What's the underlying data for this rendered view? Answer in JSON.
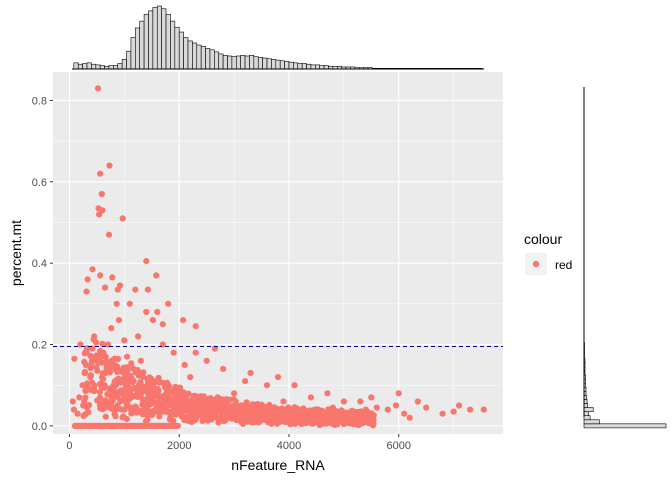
{
  "chart_data": {
    "type": "scatter",
    "title": "",
    "xlabel": "nFeature_RNA",
    "ylabel": "percent.mt",
    "xlim": [
      -300,
      7900
    ],
    "ylim": [
      -0.02,
      0.87
    ],
    "x_ticks": [
      0,
      2000,
      4000,
      6000
    ],
    "y_ticks": [
      0.0,
      0.2,
      0.4,
      0.6,
      0.8
    ],
    "x_tick_labels": [
      "0",
      "2000",
      "4000",
      "6000"
    ],
    "y_tick_labels": [
      "0.0",
      "0.2",
      "0.4",
      "0.6",
      "0.8"
    ],
    "grid": true,
    "point_color": "#F8766D",
    "panel_background": "#EBEBEB",
    "hline": {
      "y": 0.195,
      "color": "#00008B",
      "linetype": "dashed"
    },
    "legend": {
      "title": "colour",
      "position": "right",
      "entries": [
        {
          "label": "red",
          "color": "#F8766D"
        }
      ]
    },
    "series": [
      {
        "name": "red",
        "points": [
          [
            520,
            0.83
          ],
          [
            730,
            0.64
          ],
          [
            560,
            0.62
          ],
          [
            590,
            0.57
          ],
          [
            600,
            0.53
          ],
          [
            540,
            0.52
          ],
          [
            530,
            0.535
          ],
          [
            970,
            0.51
          ],
          [
            720,
            0.47
          ],
          [
            1400,
            0.405
          ],
          [
            420,
            0.385
          ],
          [
            330,
            0.36
          ],
          [
            1580,
            0.37
          ],
          [
            560,
            0.37
          ],
          [
            780,
            0.365
          ],
          [
            920,
            0.345
          ],
          [
            650,
            0.34
          ],
          [
            880,
            0.335
          ],
          [
            310,
            0.33
          ],
          [
            1200,
            0.335
          ],
          [
            1430,
            0.335
          ],
          [
            1800,
            0.3
          ],
          [
            1100,
            0.3
          ],
          [
            860,
            0.3
          ],
          [
            1400,
            0.28
          ],
          [
            1600,
            0.28
          ],
          [
            2070,
            0.26
          ],
          [
            1700,
            0.25
          ],
          [
            1520,
            0.26
          ],
          [
            2300,
            0.245
          ],
          [
            90,
            0.165
          ],
          [
            60,
            0.06
          ],
          [
            80,
            0.04
          ],
          [
            150,
            0.03
          ],
          [
            250,
            0.05
          ],
          [
            6350,
            0.06
          ],
          [
            6000,
            0.08
          ],
          [
            5500,
            0.07
          ],
          [
            5300,
            0.06
          ],
          [
            7100,
            0.05
          ],
          [
            7550,
            0.04
          ],
          [
            7300,
            0.04
          ],
          [
            7000,
            0.035
          ],
          [
            6500,
            0.045
          ],
          [
            6800,
            0.03
          ],
          [
            6100,
            0.03
          ],
          [
            5800,
            0.04
          ],
          [
            5950,
            0.05
          ],
          [
            5600,
            0.045
          ],
          [
            5200,
            0.03
          ],
          [
            4800,
            0.045
          ],
          [
            4400,
            0.07
          ],
          [
            4700,
            0.08
          ],
          [
            4100,
            0.1
          ],
          [
            3600,
            0.1
          ],
          [
            3200,
            0.11
          ],
          [
            3800,
            0.12
          ],
          [
            2800,
            0.14
          ],
          [
            3300,
            0.13
          ],
          [
            2500,
            0.16
          ],
          [
            2300,
            0.18
          ],
          [
            2650,
            0.19
          ],
          [
            200,
            0.2
          ],
          [
            420,
            0.19
          ],
          [
            300,
            0.15
          ],
          [
            380,
            0.12
          ],
          [
            240,
            0.1
          ],
          [
            450,
            0.1
          ],
          [
            180,
            0.07
          ],
          [
            640,
            0.1
          ],
          [
            700,
            0.2
          ],
          [
            620,
            0.18
          ],
          [
            760,
            0.24
          ],
          [
            900,
            0.26
          ],
          [
            1000,
            0.21
          ],
          [
            1050,
            0.17
          ],
          [
            1250,
            0.22
          ],
          [
            1300,
            0.16
          ],
          [
            1700,
            0.2
          ],
          [
            1900,
            0.18
          ],
          [
            2100,
            0.15
          ],
          [
            2200,
            0.12
          ],
          [
            5000,
            0.06
          ],
          [
            5400,
            0.04
          ],
          [
            6200,
            0.02
          ],
          [
            4600,
            0.02
          ],
          [
            4900,
            0.03
          ],
          [
            3900,
            0.06
          ],
          [
            3400,
            0.05
          ],
          [
            3000,
            0.08
          ],
          [
            2700,
            0.07
          ]
        ]
      }
    ],
    "point_cloud_description": "dense band of points between nFeature_RNA ~300-5500 with percent.mt near 0-0.2, plus a row of points at 0 from ~100 to 2000",
    "x_marginal_histogram": {
      "bin_start": -80,
      "bin_width": 80,
      "counts": [
        4,
        14,
        9,
        7,
        8,
        9,
        7,
        6,
        5,
        4,
        5,
        5,
        8,
        14,
        26,
        46,
        60,
        70,
        80,
        85,
        90,
        92,
        88,
        80,
        70,
        61,
        54,
        46,
        41,
        38,
        35,
        33,
        30,
        28,
        25,
        22,
        20,
        19,
        18,
        19,
        20,
        19,
        20,
        18,
        17,
        16,
        15,
        14,
        13,
        12,
        11,
        10,
        9,
        8,
        8,
        7,
        6,
        6,
        5,
        5,
        4,
        4,
        4,
        3,
        3,
        3,
        2,
        2,
        2,
        2,
        1,
        1,
        1,
        1,
        1,
        1,
        1,
        1,
        1,
        1,
        1,
        1,
        1,
        1,
        1,
        1,
        1,
        1,
        1,
        1,
        1,
        1,
        1,
        1,
        1,
        1,
        1,
        1,
        1,
        1,
        1,
        1,
        1,
        1,
        1
      ],
      "y_max": 95
    },
    "y_marginal_histogram": {
      "bin_start": -0.005,
      "bin_width": 0.01,
      "counts": [
        160,
        30,
        12,
        9,
        18,
        7,
        6,
        5,
        4,
        4,
        3,
        3,
        3,
        2,
        2,
        2,
        2,
        1,
        1,
        1,
        1
      ],
      "x_max": 160
    }
  }
}
